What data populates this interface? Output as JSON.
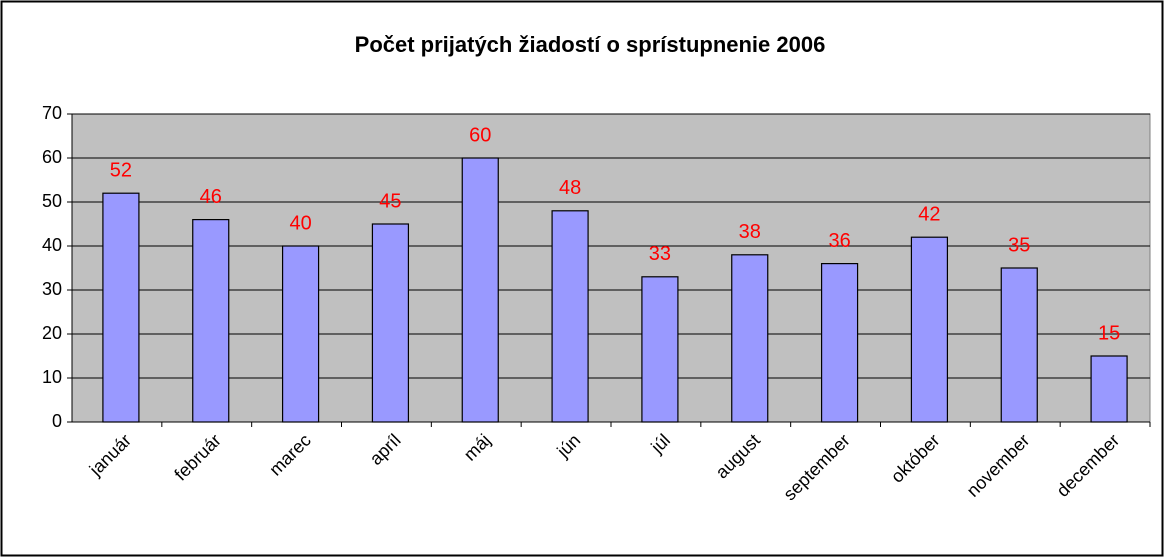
{
  "chart_data": {
    "type": "bar",
    "title": "Počet prijatých žiadostí o sprístupnenie 2006",
    "categories": [
      "január",
      "február",
      "marec",
      "apríl",
      "máj",
      "jún",
      "júl",
      "august",
      "september",
      "október",
      "november",
      "december"
    ],
    "values": [
      52,
      46,
      40,
      45,
      60,
      48,
      33,
      38,
      36,
      42,
      35,
      15
    ],
    "color": "#9999ff",
    "label_color": "#ff0000",
    "plot_background": "#c0c0c0",
    "ylim": [
      0,
      70
    ],
    "yticks": [
      0,
      10,
      20,
      30,
      40,
      50,
      60,
      70
    ],
    "grid": true
  }
}
